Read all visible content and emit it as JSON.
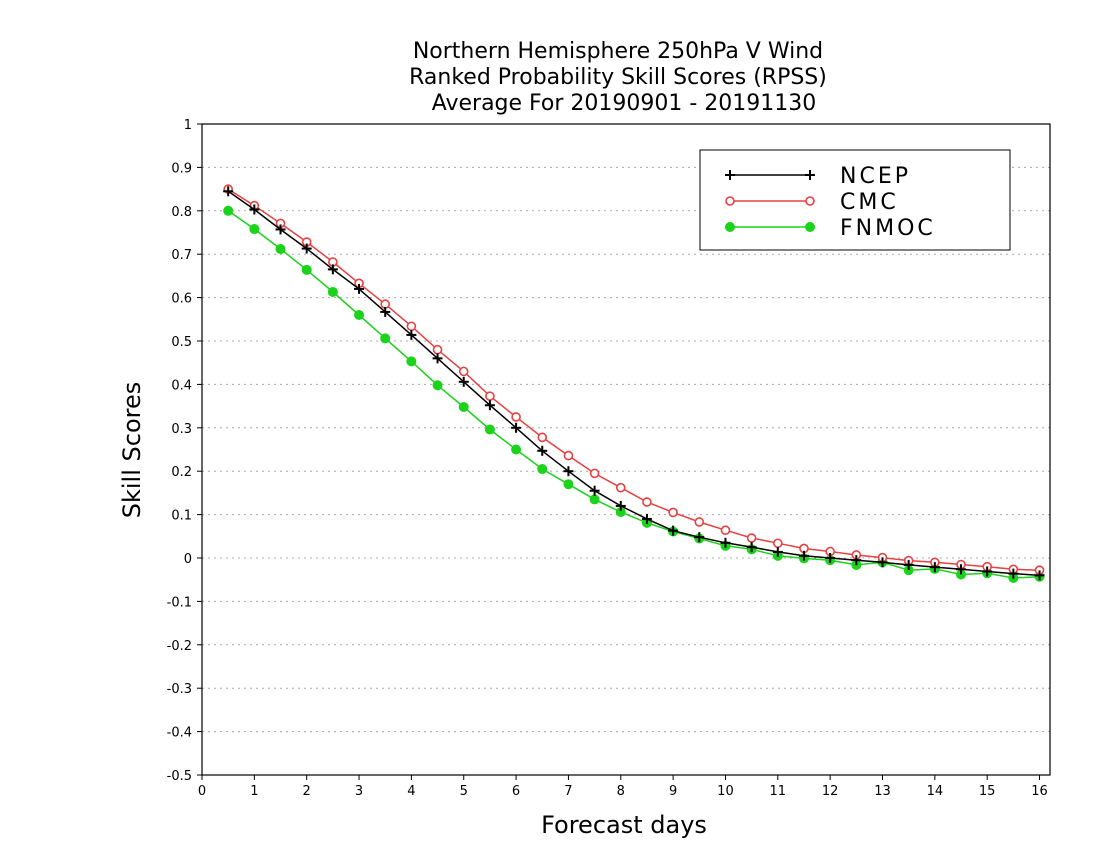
{
  "chart_data": {
    "type": "line",
    "title": [
      "Northern Hemisphere 250hPa V Wind",
      "Ranked Probability Skill Scores (RPSS)",
      "Average For 20190901 - 20191130"
    ],
    "xlabel": "Forecast days",
    "ylabel": "Skill Scores",
    "xlim": [
      0,
      16.2
    ],
    "ylim": [
      -0.5,
      1.0
    ],
    "xticks": [
      0,
      1,
      2,
      3,
      4,
      5,
      6,
      7,
      8,
      9,
      10,
      11,
      12,
      13,
      14,
      15,
      16
    ],
    "yticks": [
      -0.5,
      -0.4,
      -0.3,
      -0.2,
      -0.1,
      0,
      0.1,
      0.2,
      0.3,
      0.4,
      0.5,
      0.6,
      0.7,
      0.8,
      0.9,
      1
    ],
    "ytick_labels": [
      "-0.5",
      "-0.4",
      "-0.3",
      "-0.2",
      "-0.1",
      "0",
      "0.1",
      "0.2",
      "0.3",
      "0.4",
      "0.5",
      "0.6",
      "0.7",
      "0.8",
      "0.9",
      "1"
    ],
    "grid": true,
    "legend_position": "top-right",
    "x": [
      0.5,
      1,
      1.5,
      2,
      2.5,
      3,
      3.5,
      4,
      4.5,
      5,
      5.5,
      6,
      6.5,
      7,
      7.5,
      8,
      8.5,
      9,
      9.5,
      10,
      10.5,
      11,
      11.5,
      12,
      12.5,
      13,
      13.5,
      14,
      14.5,
      15,
      15.5,
      16
    ],
    "series": [
      {
        "name": "NCEP",
        "color": "#000000",
        "marker": "plus",
        "values": [
          0.845,
          0.803,
          0.757,
          0.713,
          0.665,
          0.62,
          0.567,
          0.514,
          0.46,
          0.406,
          0.352,
          0.3,
          0.247,
          0.2,
          0.155,
          0.12,
          0.09,
          0.063,
          0.048,
          0.035,
          0.025,
          0.014,
          0.005,
          0.0,
          -0.005,
          -0.01,
          -0.016,
          -0.021,
          -0.026,
          -0.031,
          -0.036,
          -0.04
        ]
      },
      {
        "name": "CMC",
        "color": "#e84040",
        "marker": "open-circle",
        "values": [
          0.85,
          0.812,
          0.771,
          0.728,
          0.682,
          0.633,
          0.585,
          0.534,
          0.48,
          0.43,
          0.373,
          0.325,
          0.278,
          0.236,
          0.195,
          0.162,
          0.129,
          0.105,
          0.083,
          0.064,
          0.046,
          0.034,
          0.022,
          0.015,
          0.007,
          0.001,
          -0.006,
          -0.01,
          -0.015,
          -0.02,
          -0.026,
          -0.028
        ]
      },
      {
        "name": "FNMOC",
        "color": "#1ad31a",
        "marker": "filled-circle",
        "values": [
          0.8,
          0.758,
          0.712,
          0.664,
          0.613,
          0.56,
          0.506,
          0.453,
          0.398,
          0.348,
          0.296,
          0.25,
          0.205,
          0.17,
          0.135,
          0.106,
          0.081,
          0.061,
          0.045,
          0.028,
          0.02,
          0.005,
          -0.001,
          -0.005,
          -0.016,
          -0.01,
          -0.028,
          -0.025,
          -0.038,
          -0.035,
          -0.046,
          -0.043
        ]
      }
    ]
  }
}
